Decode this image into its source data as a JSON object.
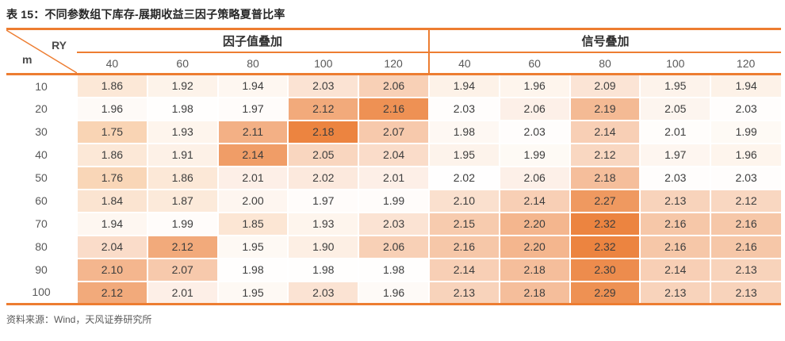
{
  "title": "表 15：不同参数组下库存-展期收益三因子策略夏普比率",
  "source": "资料来源：Wind，天风证券研究所",
  "corner": {
    "row_label": "m",
    "col_label": "RY"
  },
  "groups": [
    {
      "key": "factor_value",
      "label": "因子值叠加",
      "columns": [
        "40",
        "60",
        "80",
        "100",
        "120"
      ]
    },
    {
      "key": "signal",
      "label": "信号叠加",
      "columns": [
        "40",
        "60",
        "80",
        "100",
        "120"
      ]
    }
  ],
  "rows": [
    {
      "m": "10",
      "factor_value": [
        "1.86",
        "1.92",
        "1.94",
        "2.03",
        "2.06"
      ],
      "signal": [
        "1.94",
        "1.96",
        "2.09",
        "1.95",
        "1.94"
      ]
    },
    {
      "m": "20",
      "factor_value": [
        "1.96",
        "1.98",
        "1.97",
        "2.12",
        "2.16"
      ],
      "signal": [
        "2.03",
        "2.06",
        "2.19",
        "2.05",
        "2.03"
      ]
    },
    {
      "m": "30",
      "factor_value": [
        "1.75",
        "1.93",
        "2.11",
        "2.18",
        "2.07"
      ],
      "signal": [
        "1.98",
        "2.03",
        "2.14",
        "2.01",
        "1.99"
      ]
    },
    {
      "m": "40",
      "factor_value": [
        "1.86",
        "1.91",
        "2.14",
        "2.05",
        "2.04"
      ],
      "signal": [
        "1.95",
        "1.99",
        "2.12",
        "1.97",
        "1.96"
      ]
    },
    {
      "m": "50",
      "factor_value": [
        "1.76",
        "1.86",
        "2.01",
        "2.02",
        "2.01"
      ],
      "signal": [
        "2.02",
        "2.06",
        "2.18",
        "2.03",
        "2.03"
      ]
    },
    {
      "m": "60",
      "factor_value": [
        "1.84",
        "1.87",
        "2.00",
        "1.97",
        "1.99"
      ],
      "signal": [
        "2.10",
        "2.14",
        "2.27",
        "2.13",
        "2.12"
      ]
    },
    {
      "m": "70",
      "factor_value": [
        "1.94",
        "1.99",
        "1.85",
        "1.93",
        "2.03"
      ],
      "signal": [
        "2.15",
        "2.20",
        "2.32",
        "2.16",
        "2.16"
      ]
    },
    {
      "m": "80",
      "factor_value": [
        "2.04",
        "2.12",
        "1.95",
        "1.90",
        "2.06"
      ],
      "signal": [
        "2.16",
        "2.20",
        "2.32",
        "2.16",
        "2.16"
      ]
    },
    {
      "m": "90",
      "factor_value": [
        "2.10",
        "2.07",
        "1.98",
        "1.98",
        "1.98"
      ],
      "signal": [
        "2.14",
        "2.18",
        "2.30",
        "2.14",
        "2.13"
      ]
    },
    {
      "m": "100",
      "factor_value": [
        "2.12",
        "2.01",
        "1.95",
        "2.03",
        "1.96"
      ],
      "signal": [
        "2.13",
        "2.18",
        "2.29",
        "2.13",
        "2.13"
      ]
    }
  ],
  "heatmap": {
    "low_color": "#F9D4B4",
    "mid_color": "#FFFFFF",
    "high_color": "#EC8440",
    "scales": {
      "factor_value": {
        "min": 1.75,
        "mid": 1.985,
        "max": 2.18
      },
      "signal": {
        "min": 1.75,
        "mid": 2.025,
        "max": 2.32
      }
    }
  },
  "colors": {
    "accent": "#ED7D31",
    "title_text": "#262626",
    "header_text": "#595959",
    "cell_text": "#3D3D3D",
    "source_text": "#595959"
  }
}
